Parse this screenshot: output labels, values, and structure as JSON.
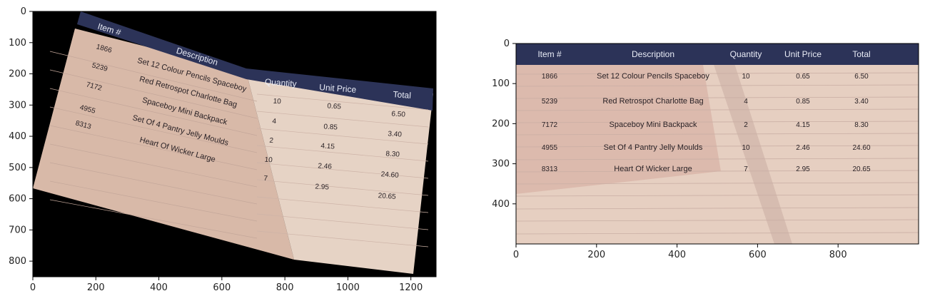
{
  "left_plot": {
    "x_ticks": [
      "0",
      "200",
      "400",
      "600",
      "800",
      "1000",
      "1200"
    ],
    "y_ticks": [
      "0",
      "100",
      "200",
      "300",
      "400",
      "500",
      "600",
      "700",
      "800"
    ],
    "x_max": 1280,
    "y_max": 850
  },
  "right_plot": {
    "x_ticks": [
      "0",
      "200",
      "400",
      "600",
      "800"
    ],
    "y_ticks": [
      "0",
      "100",
      "200",
      "300",
      "400"
    ],
    "x_max": 1000,
    "y_max": 500
  },
  "table": {
    "headers": [
      "Item #",
      "Description",
      "Quantity",
      "Unit Price",
      "Total"
    ],
    "rows": [
      [
        "1866",
        "Set 12 Colour Pencils Spaceboy",
        "10",
        "0.65",
        "6.50"
      ],
      [
        "5239",
        "Red Retrospot Charlotte Bag",
        "4",
        "0.85",
        "3.40"
      ],
      [
        "7172",
        "Spaceboy Mini Backpack",
        "2",
        "4.15",
        "8.30"
      ],
      [
        "4955",
        "Set Of 4 Pantry Jelly Moulds",
        "10",
        "2.46",
        "24.60"
      ],
      [
        "8313",
        "Heart Of Wicker Large",
        "7",
        "2.95",
        "20.65"
      ]
    ],
    "colors": {
      "paper": "#e6cfc1",
      "paper_shadow": "#d9b8ab",
      "header": "#2c3358",
      "black": "#000000"
    }
  }
}
